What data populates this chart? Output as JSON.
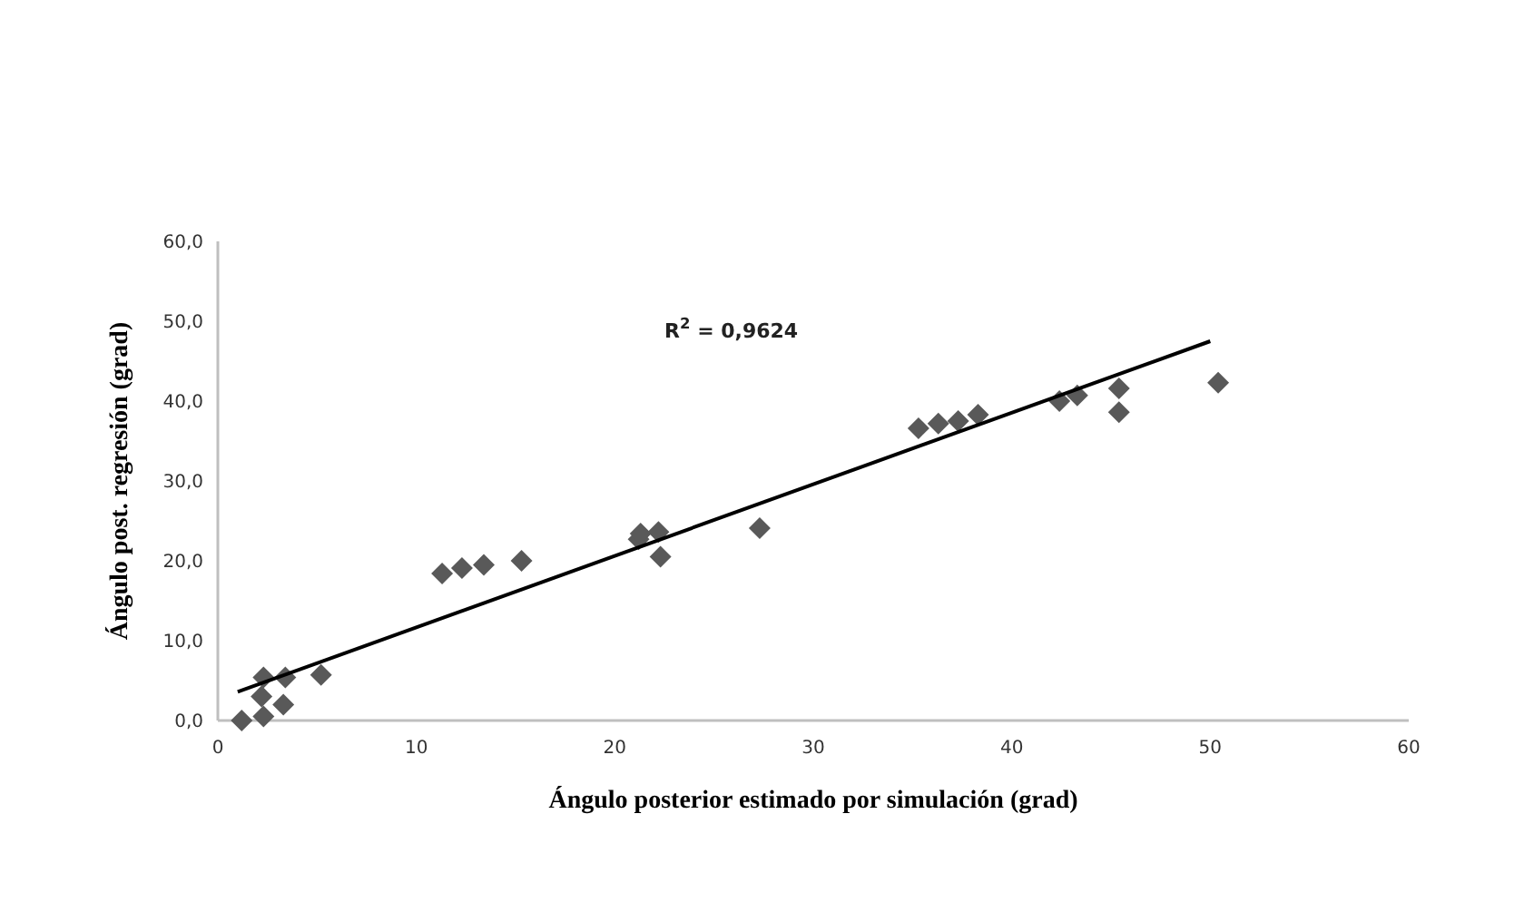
{
  "chart_data": {
    "type": "scatter",
    "xlabel": "Ángulo posterior estimado por simulación (grad)",
    "ylabel": "Ángulo post. regresión (grad)",
    "annotations": [
      "R$^{2}$ = 0,9624"
    ],
    "xlim": [
      0,
      60
    ],
    "xticks": [
      0,
      10,
      20,
      30,
      40,
      50,
      60
    ],
    "ylim": [
      0,
      60
    ],
    "yticks": [
      {
        "value": 0,
        "label": "0,0"
      },
      {
        "value": 10,
        "label": "10,0"
      },
      {
        "value": 20,
        "label": "20,0"
      },
      {
        "value": 30,
        "label": "30,0"
      },
      {
        "value": 40,
        "label": "40,0"
      },
      {
        "value": 50,
        "label": "50,0"
      },
      {
        "value": 60,
        "label": "60,0"
      }
    ],
    "grid": false,
    "marker": "diamond",
    "series": [
      {
        "color": "#595959",
        "x": [
          1.2,
          2.3,
          2.3,
          2.2,
          3.3,
          3.4,
          5.2,
          11.3,
          12.3,
          13.4,
          15.3,
          21.2,
          21.3,
          22.2,
          22.3,
          27.3,
          35.3,
          36.3,
          37.3,
          38.3,
          42.4,
          43.3,
          45.4,
          45.4,
          50.4
        ],
        "values": [
          0,
          0.5,
          5.4,
          3,
          2,
          5.4,
          5.7,
          18.4,
          19.1,
          19.5,
          20,
          22.7,
          23.4,
          23.6,
          20.5,
          24.1,
          36.6,
          37.2,
          37.5,
          38.3,
          40,
          40.7,
          41.6,
          38.6,
          42.3
        ]
      },
      {
        "type": "line",
        "color": "#000000",
        "x": [
          1,
          50
        ],
        "values": [
          3.6,
          47.5
        ],
        "marker": "none"
      }
    ]
  }
}
